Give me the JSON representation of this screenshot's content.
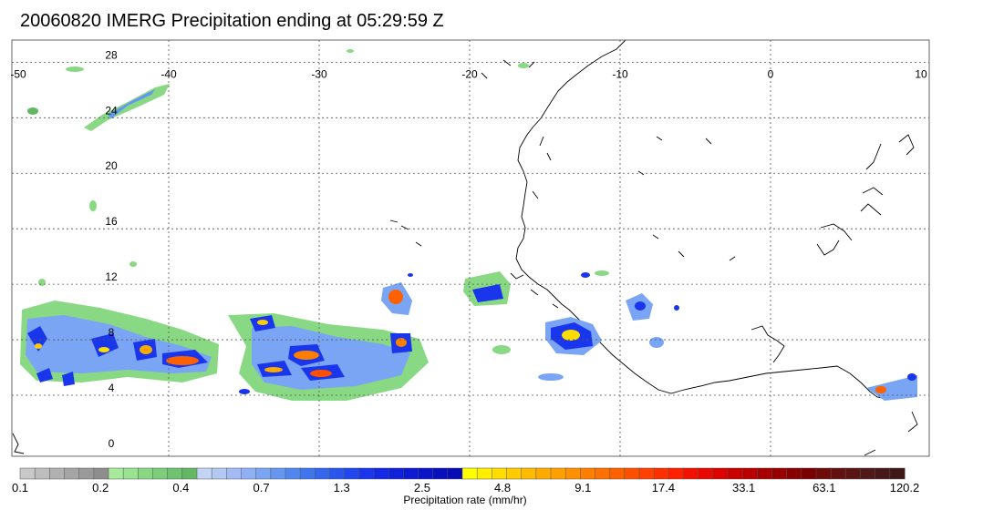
{
  "title": "20060820 IMERG Precipitation ending at 05:29:59 Z",
  "map": {
    "lon_ticks": [
      "-50",
      "-40",
      "-30",
      "-20",
      "-10",
      "0",
      "10"
    ],
    "lat_ticks": [
      "28",
      "24",
      "20",
      "16",
      "12",
      "8",
      "4",
      "0"
    ],
    "extent": {
      "lon": [
        -50,
        10
      ],
      "lat": [
        -0.4,
        29.6
      ]
    }
  },
  "colorbar": {
    "label": "Precipitation rate (mm/hr)",
    "tick_labels": [
      "0.1",
      "0.2",
      "0.4",
      "0.7",
      "1.3",
      "2.5",
      "4.8",
      "9.1",
      "17.4",
      "33.1",
      "63.1",
      "120.2"
    ],
    "colors": [
      "#c8c8c8",
      "#bdbdbd",
      "#b1b1b1",
      "#a5a5a5",
      "#9a9a9a",
      "#8e8e8e",
      "#a8ea9c",
      "#98e290",
      "#89d884",
      "#7bcd78",
      "#6fc26e",
      "#64b864",
      "#c4d4f4",
      "#b4c8f4",
      "#a2bbf4",
      "#8fb0f4",
      "#7aa4f4",
      "#6496f2",
      "#4f86f0",
      "#3f76ee",
      "#3566ee",
      "#2a56ee",
      "#2046ee",
      "#1a36ec",
      "#1428e6",
      "#1020dc",
      "#0c1ad2",
      "#0a14c8",
      "#0810be",
      "#060cb4",
      "#ffff00",
      "#ffee00",
      "#ffdd00",
      "#ffcc00",
      "#ffbb00",
      "#ffaa00",
      "#ffa000",
      "#ff9000",
      "#ff8000",
      "#ff7000",
      "#ff6000",
      "#ff5000",
      "#ff4000",
      "#ff3000",
      "#ff2000",
      "#f41000",
      "#e80800",
      "#dc0000",
      "#c80000",
      "#b80000",
      "#a80000",
      "#980000",
      "#880000",
      "#7a0000",
      "#6e0a0a",
      "#641010",
      "#5a1414",
      "#501818",
      "#481818",
      "#401818"
    ]
  }
}
